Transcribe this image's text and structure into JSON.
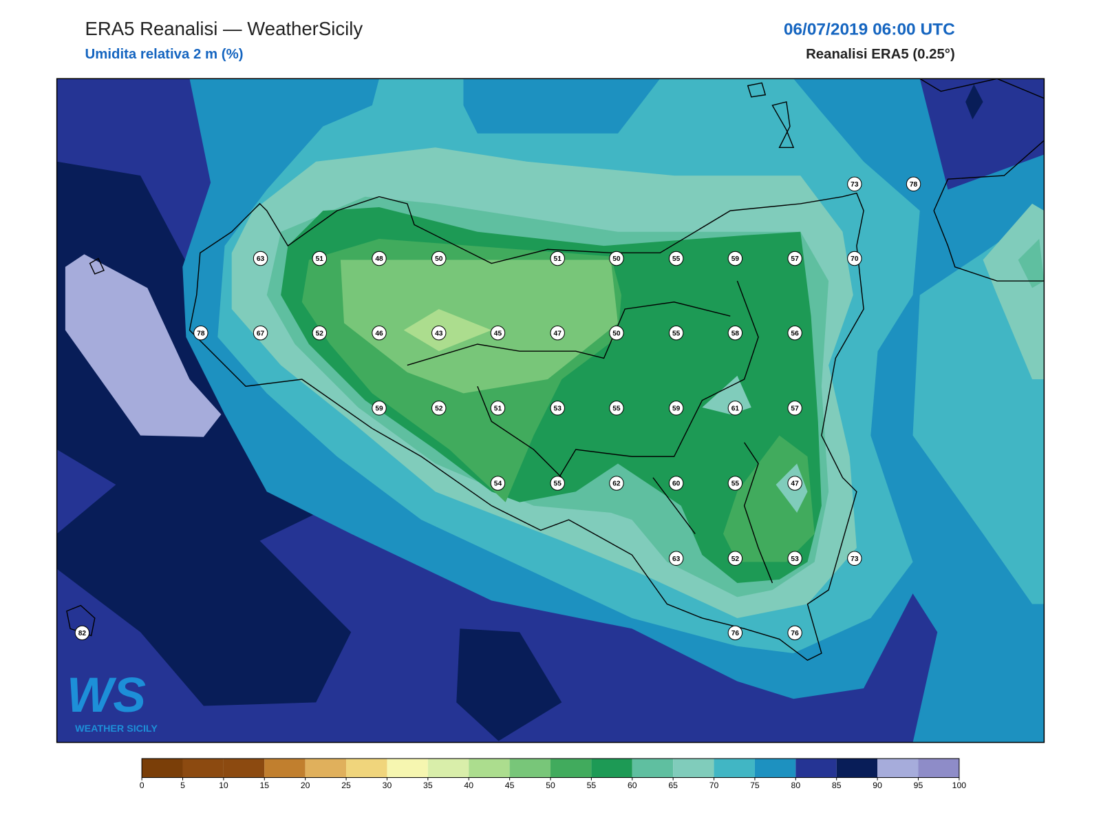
{
  "header": {
    "title": "ERA5 Reanalisi — WeatherSicily",
    "subtitle": "Umidita relativa 2 m (%)",
    "datetime": "06/07/2019 06:00 UTC",
    "source": "Reanalisi ERA5 (0.25°)"
  },
  "logo": {
    "mark": "WS",
    "text": "WEATHER SICILY"
  },
  "station_values": [
    73,
    78,
    63,
    51,
    48,
    50,
    51,
    50,
    55,
    59,
    57,
    70,
    78,
    67,
    52,
    46,
    43,
    45,
    47,
    50,
    55,
    58,
    56,
    59,
    52,
    51,
    53,
    55,
    59,
    61,
    57,
    54,
    55,
    62,
    60,
    55,
    47,
    63,
    52,
    53,
    73,
    82,
    76,
    76
  ],
  "colorbar": {
    "ticks": [
      0,
      5,
      10,
      15,
      20,
      25,
      30,
      35,
      40,
      45,
      50,
      55,
      60,
      65,
      70,
      75,
      80,
      85,
      90,
      95,
      100
    ],
    "colors": [
      "#7a3e08",
      "#8c4a10",
      "#8c4a10",
      "#c17f2e",
      "#e0b05c",
      "#f0d57c",
      "#f6f6b0",
      "#d9eeaa",
      "#acdd8e",
      "#78c679",
      "#41ab5d",
      "#1d9a55",
      "#5fbfa0",
      "#80ccbb",
      "#41b6c4",
      "#1d91c0",
      "#253494",
      "#081d58",
      "#a6acdb",
      "#8e8cc8"
    ]
  }
}
